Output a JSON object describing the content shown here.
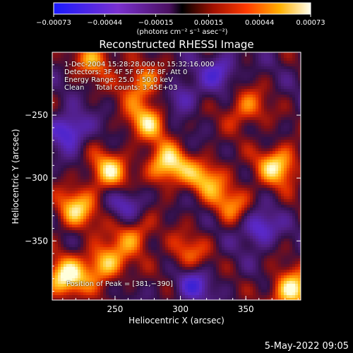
{
  "chart_data": {
    "type": "heatmap",
    "title": "Reconstructed RHESSI Image",
    "xlabel": "Heliocentric X (arcsec)",
    "ylabel": "Heliocentric Y (arcsec)",
    "xlim": [
      202,
      392
    ],
    "ylim": [
      -397,
      -200
    ],
    "x_ticks": [
      250,
      300,
      350
    ],
    "x_tick_labels": [
      "250",
      "300",
      "350"
    ],
    "y_ticks": [
      -250,
      -300,
      -350
    ],
    "y_tick_labels": [
      "−250",
      "−300",
      "−350"
    ],
    "colorbar": {
      "range": [
        -0.00073,
        0.00073
      ],
      "ticks": [
        -0.00073,
        -0.00044,
        -0.00015,
        0.00015,
        0.00044,
        0.00073
      ],
      "tick_labels": [
        "−0.00073",
        "−0.00044",
        "−0.00015",
        "0.00015",
        "0.00044",
        "0.00073"
      ],
      "units": "(photons cm⁻² s⁻¹ asec⁻²)"
    },
    "info_lines": [
      "1‑Dec‑2004 15:28:28.000 to 15:32:16.000",
      "Detectors: 3F 4F 5F 6F 7F 8F, Att 0",
      "Energy Range: 25.0 – 50.0 keV",
      "Clean     Total counts: 3.45E+03"
    ],
    "peak_label": "Position of Peak = [381,−390]",
    "bright_sources": [
      {
        "x": 212,
        "y": -380,
        "intensity": 1.0
      },
      {
        "x": 242,
        "y": -368,
        "intensity": 0.85
      },
      {
        "x": 220,
        "y": -325,
        "intensity": 0.8
      },
      {
        "x": 245,
        "y": -295,
        "intensity": 0.8
      },
      {
        "x": 275,
        "y": -255,
        "intensity": 0.75
      },
      {
        "x": 270,
        "y": -225,
        "intensity": 0.7
      },
      {
        "x": 235,
        "y": -205,
        "intensity": 0.65
      },
      {
        "x": 290,
        "y": -290,
        "intensity": 0.95
      },
      {
        "x": 320,
        "y": -300,
        "intensity": 0.7
      },
      {
        "x": 340,
        "y": -320,
        "intensity": 0.55
      },
      {
        "x": 375,
        "y": -290,
        "intensity": 0.9
      },
      {
        "x": 350,
        "y": -245,
        "intensity": 0.6
      },
      {
        "x": 385,
        "y": -390,
        "intensity": 1.0
      },
      {
        "x": 265,
        "y": -345,
        "intensity": 0.6
      },
      {
        "x": 305,
        "y": -360,
        "intensity": 0.5
      }
    ],
    "dark_sources": [
      {
        "x": 215,
        "y": -262,
        "intensity": 0.8
      },
      {
        "x": 360,
        "y": -340,
        "intensity": 0.7
      },
      {
        "x": 330,
        "y": -215,
        "intensity": 0.6
      },
      {
        "x": 310,
        "y": -385,
        "intensity": 0.6
      },
      {
        "x": 300,
        "y": -235,
        "intensity": 0.5
      },
      {
        "x": 260,
        "y": -320,
        "intensity": 0.5
      }
    ]
  },
  "footer": {
    "timestamp": "5‑May‑2022 09:05"
  }
}
